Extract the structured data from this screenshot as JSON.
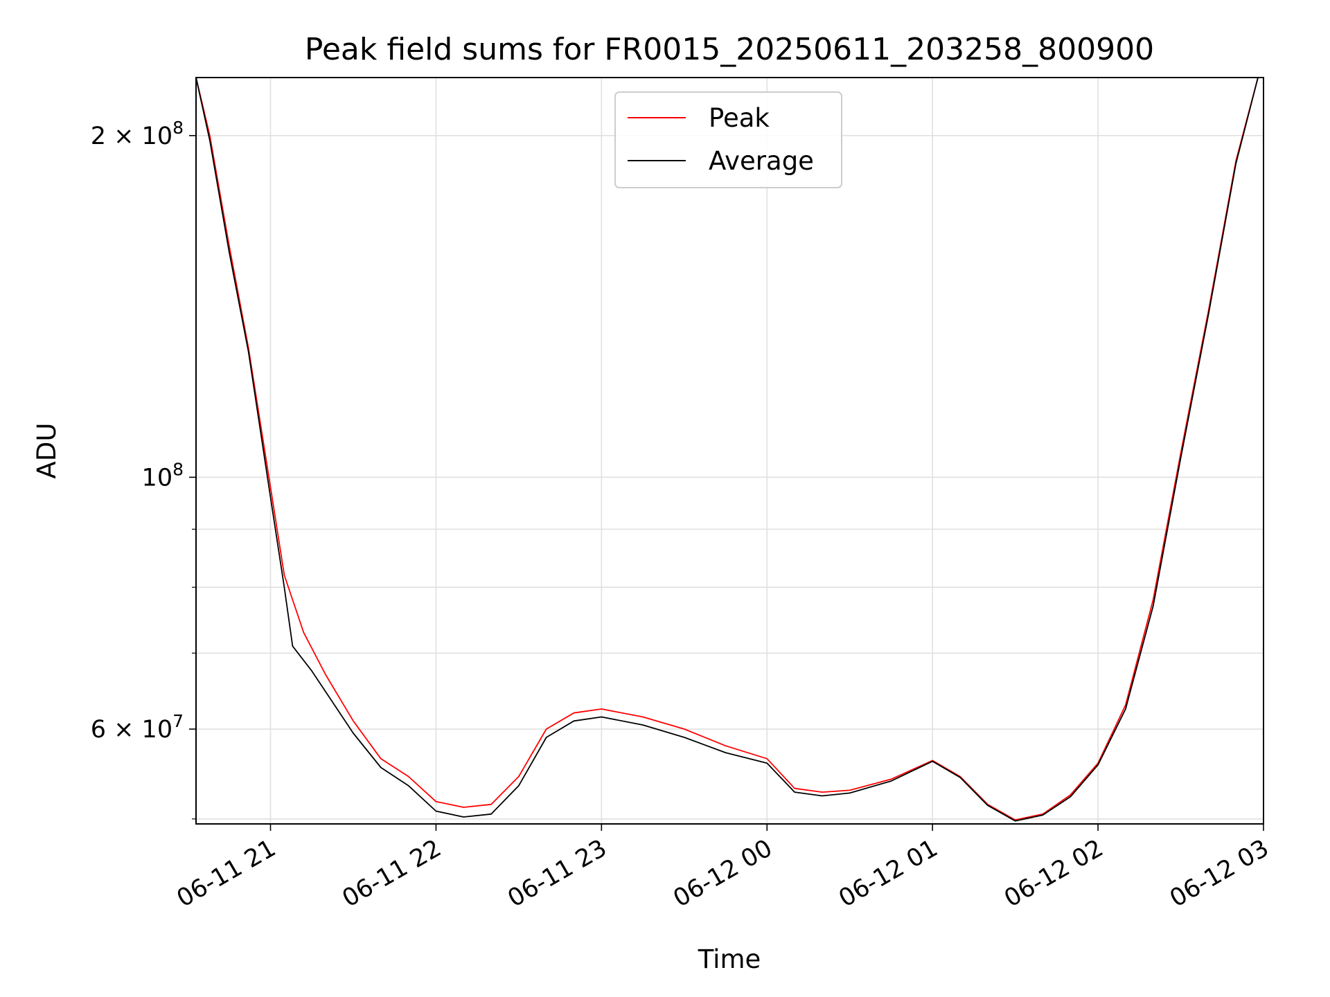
{
  "chart_data": {
    "type": "line",
    "title": "Peak field sums for FR0015_20250611_203258_800900",
    "xlabel": "Time",
    "ylabel": "ADU",
    "x_tick_labels": [
      "06-11 21",
      "06-11 22",
      "06-11 23",
      "06-12 00",
      "06-12 01",
      "06-12 02",
      "06-12 03"
    ],
    "y_tick_labels": [
      {
        "base": "2",
        "times": "×",
        "ten": "10",
        "exp": "8",
        "value": 200000000
      },
      {
        "base": "",
        "times": "",
        "ten": "10",
        "exp": "8",
        "value": 100000000
      },
      {
        "base": "6",
        "times": "×",
        "ten": "10",
        "exp": "7",
        "value": 60000000
      }
    ],
    "x_range": [
      "2025-06-11 20:33",
      "2025-06-12 03:00"
    ],
    "y_range": [
      49500000,
      225000000
    ],
    "y_scale": "log",
    "grid": true,
    "legend_position": "top-center",
    "series": [
      {
        "name": "Peak",
        "color": "#ff0000",
        "points": [
          [
            "2025-06-11 20:33",
            225000000
          ],
          [
            "2025-06-11 20:38",
            200000000
          ],
          [
            "2025-06-11 20:45",
            160000000
          ],
          [
            "2025-06-11 20:52",
            130000000
          ],
          [
            "2025-06-11 21:00",
            98000000
          ],
          [
            "2025-06-11 21:05",
            82000000
          ],
          [
            "2025-06-11 21:12",
            73000000
          ],
          [
            "2025-06-11 21:20",
            67000000
          ],
          [
            "2025-06-11 21:30",
            61000000
          ],
          [
            "2025-06-11 21:40",
            56500000
          ],
          [
            "2025-06-11 21:50",
            54500000
          ],
          [
            "2025-06-11 22:00",
            51800000
          ],
          [
            "2025-06-11 22:10",
            51200000
          ],
          [
            "2025-06-11 22:20",
            51500000
          ],
          [
            "2025-06-11 22:30",
            54500000
          ],
          [
            "2025-06-11 22:40",
            60000000
          ],
          [
            "2025-06-11 22:50",
            62000000
          ],
          [
            "2025-06-11 23:00",
            62500000
          ],
          [
            "2025-06-11 23:15",
            61500000
          ],
          [
            "2025-06-11 23:30",
            60000000
          ],
          [
            "2025-06-11 23:45",
            58000000
          ],
          [
            "2025-06-12 00:00",
            56500000
          ],
          [
            "2025-06-12 00:10",
            53200000
          ],
          [
            "2025-06-12 00:20",
            52800000
          ],
          [
            "2025-06-12 00:30",
            53000000
          ],
          [
            "2025-06-12 00:45",
            54200000
          ],
          [
            "2025-06-12 01:00",
            56300000
          ],
          [
            "2025-06-12 01:10",
            54500000
          ],
          [
            "2025-06-12 01:20",
            51500000
          ],
          [
            "2025-06-12 01:30",
            49900000
          ],
          [
            "2025-06-12 01:40",
            50500000
          ],
          [
            "2025-06-12 01:50",
            52500000
          ],
          [
            "2025-06-12 02:00",
            56000000
          ],
          [
            "2025-06-12 02:10",
            63000000
          ],
          [
            "2025-06-12 02:20",
            78000000
          ],
          [
            "2025-06-12 02:30",
            105000000
          ],
          [
            "2025-06-12 02:40",
            140000000
          ],
          [
            "2025-06-12 02:50",
            190000000
          ],
          [
            "2025-06-12 02:58",
            225000000
          ]
        ]
      },
      {
        "name": "Average",
        "color": "#000000",
        "points": [
          [
            "2025-06-11 20:33",
            225000000
          ],
          [
            "2025-06-11 20:38",
            198000000
          ],
          [
            "2025-06-11 20:45",
            158000000
          ],
          [
            "2025-06-11 20:52",
            129000000
          ],
          [
            "2025-06-11 21:00",
            96000000
          ],
          [
            "2025-06-11 21:05",
            80000000
          ],
          [
            "2025-06-11 21:08",
            71000000
          ],
          [
            "2025-06-11 21:15",
            67500000
          ],
          [
            "2025-06-11 21:30",
            59500000
          ],
          [
            "2025-06-11 21:40",
            55500000
          ],
          [
            "2025-06-11 21:50",
            53500000
          ],
          [
            "2025-06-11 22:00",
            50800000
          ],
          [
            "2025-06-11 22:10",
            50200000
          ],
          [
            "2025-06-11 22:20",
            50500000
          ],
          [
            "2025-06-11 22:30",
            53500000
          ],
          [
            "2025-06-11 22:40",
            59000000
          ],
          [
            "2025-06-11 22:50",
            61000000
          ],
          [
            "2025-06-11 23:00",
            61500000
          ],
          [
            "2025-06-11 23:15",
            60500000
          ],
          [
            "2025-06-11 23:30",
            59000000
          ],
          [
            "2025-06-11 23:45",
            57200000
          ],
          [
            "2025-06-12 00:00",
            56000000
          ],
          [
            "2025-06-12 00:10",
            52800000
          ],
          [
            "2025-06-12 00:20",
            52400000
          ],
          [
            "2025-06-12 00:30",
            52700000
          ],
          [
            "2025-06-12 00:45",
            54000000
          ],
          [
            "2025-06-12 01:00",
            56200000
          ],
          [
            "2025-06-12 01:10",
            54400000
          ],
          [
            "2025-06-12 01:20",
            51400000
          ],
          [
            "2025-06-12 01:30",
            49800000
          ],
          [
            "2025-06-12 01:40",
            50400000
          ],
          [
            "2025-06-12 01:50",
            52300000
          ],
          [
            "2025-06-12 02:00",
            55800000
          ],
          [
            "2025-06-12 02:10",
            62500000
          ],
          [
            "2025-06-12 02:20",
            77000000
          ],
          [
            "2025-06-12 02:30",
            104000000
          ],
          [
            "2025-06-12 02:40",
            139000000
          ],
          [
            "2025-06-12 02:50",
            189000000
          ],
          [
            "2025-06-12 02:58",
            225000000
          ]
        ]
      }
    ]
  }
}
